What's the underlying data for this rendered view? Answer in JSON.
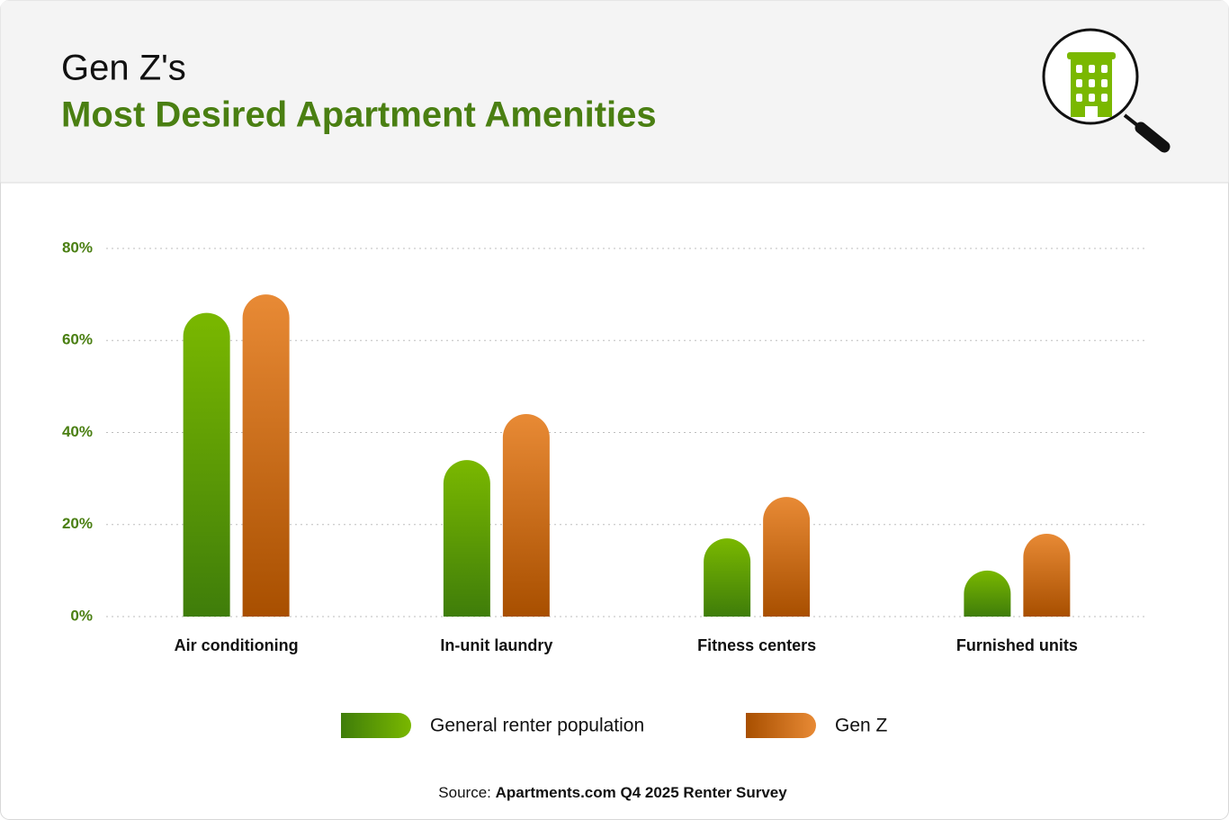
{
  "chart_data": {
    "type": "bar",
    "title": "Gen Z's",
    "subtitle": "Most Desired Apartment Amenities",
    "categories": [
      "Air conditioning",
      "In-unit laundry",
      "Fitness centers",
      "Furnished units"
    ],
    "series": [
      {
        "name": "General renter population",
        "colors": [
          "#7ab800",
          "#3f7d0a"
        ],
        "values": [
          66,
          34,
          17,
          10
        ]
      },
      {
        "name": "Gen Z",
        "colors": [
          "#e88a35",
          "#a84f00"
        ],
        "values": [
          70,
          44,
          26,
          18
        ]
      }
    ],
    "ylim": [
      0,
      80
    ],
    "yticks": [
      {
        "value": 0,
        "label": "0%"
      },
      {
        "value": 20,
        "label": "20%"
      },
      {
        "value": 40,
        "label": "40%"
      },
      {
        "value": 60,
        "label": "60%"
      },
      {
        "value": 80,
        "label": "80%"
      }
    ],
    "grid": true,
    "source_label": "Source:",
    "source": "Apartments.com Q4 2025 Renter Survey"
  }
}
